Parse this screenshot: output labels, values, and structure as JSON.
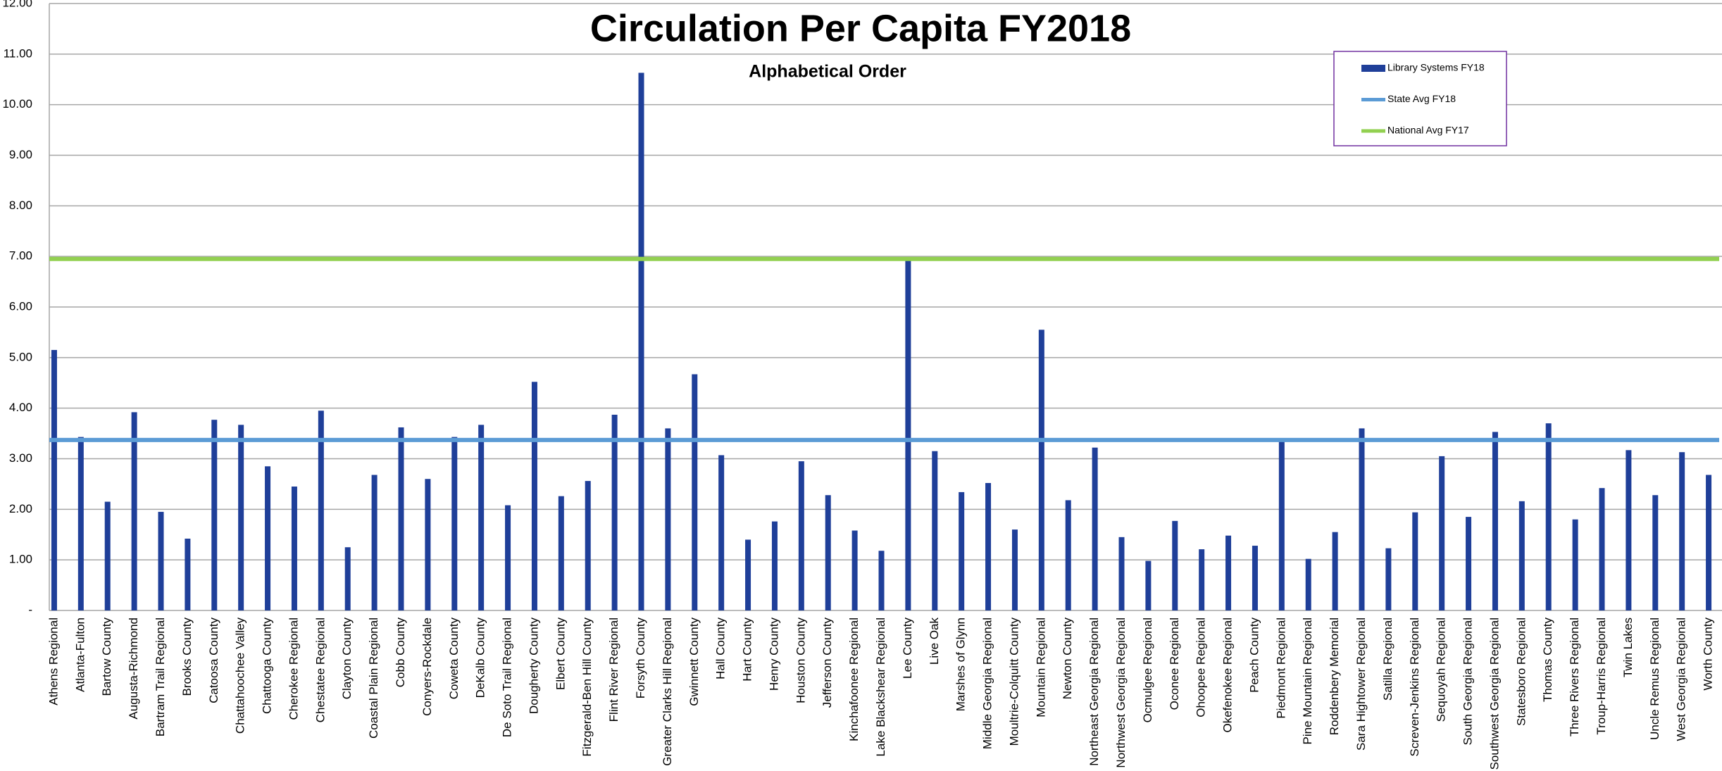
{
  "chart_data": {
    "type": "bar",
    "title": "Circulation Per Capita FY2018",
    "subtitle": "Alphabetical Order",
    "categories": [
      "Athens Regional",
      "Atlanta-Fulton",
      "Bartow County",
      "Augusta-Richmond",
      "Bartram Trail Regional",
      "Brooks County",
      "Catoosa County",
      "Chattahoochee Valley",
      "Chattooga County",
      "Cherokee Regional",
      "Chestatee Regional",
      "Clayton County",
      "Coastal Plain Regional",
      "Cobb County",
      "Conyers-Rockdale",
      "Coweta County",
      "DeKalb County",
      "De Soto Trail Regional",
      "Dougherty County",
      "Elbert County",
      "Fitzgerald-Ben Hill County",
      "Flint River Regional",
      "Forsyth County",
      "Greater Clarks Hill Regional",
      "Gwinnett County",
      "Hall County",
      "Hart County",
      "Henry County",
      "Houston County",
      "Jefferson County",
      "Kinchafoonee Regional",
      "Lake Blackshear Regional",
      "Lee County",
      "Live Oak",
      "Marshes of Glynn",
      "Middle Georgia Regional",
      "Moultrie-Colquitt County",
      "Mountain Regional",
      "Newton County",
      "Northeast Georgia Regional",
      "Northwest Georgia Regional",
      "Ocmulgee Regional",
      "Oconee Regional",
      "Ohoopee Regional",
      "Okefenokee Regional",
      "Peach County",
      "Piedmont Regional",
      "Pine Mountain Regional",
      "Roddenbery Memorial",
      "Sara Hightower Regional",
      "Satilla Regional",
      "Screven-Jenkins Regional",
      "Sequoyah Regional",
      "South Georgia Regional",
      "Southwest Georgia Regional",
      "Statesboro Regional",
      "Thomas County",
      "Three Rivers Regional",
      "Troup-Harris Regional",
      "Twin Lakes",
      "Uncle Remus Regional",
      "West Georgia Regional",
      "Worth County"
    ],
    "series": [
      {
        "name": "Library Systems FY18",
        "color": "#1f3f99",
        "values": [
          5.15,
          3.43,
          2.15,
          3.92,
          1.95,
          1.42,
          3.77,
          3.67,
          2.85,
          2.45,
          3.95,
          1.25,
          2.68,
          3.62,
          2.6,
          3.43,
          3.67,
          2.08,
          4.52,
          2.26,
          2.56,
          3.87,
          10.63,
          3.6,
          4.67,
          3.07,
          1.4,
          1.76,
          2.95,
          2.28,
          1.58,
          1.18,
          6.92,
          3.15,
          2.34,
          2.52,
          1.6,
          5.55,
          2.18,
          3.22,
          1.45,
          0.98,
          1.77,
          1.21,
          1.48,
          1.28,
          3.35,
          1.02,
          1.55,
          3.6,
          1.23,
          1.94,
          3.05,
          1.85,
          3.53,
          2.16,
          3.7,
          1.8,
          2.42,
          3.17,
          2.28,
          3.13,
          2.68
        ]
      }
    ],
    "reference_lines": [
      {
        "name": "State Avg FY18",
        "color": "#5b9bd5",
        "value": 3.37
      },
      {
        "name": "National Avg FY17",
        "color": "#92d050",
        "value": 6.95
      }
    ],
    "ylim": [
      0,
      12
    ],
    "yticks": [
      {
        "value": 0,
        "label": "-"
      },
      {
        "value": 1,
        "label": "1.00"
      },
      {
        "value": 2,
        "label": "2.00"
      },
      {
        "value": 3,
        "label": "3.00"
      },
      {
        "value": 4,
        "label": "4.00"
      },
      {
        "value": 5,
        "label": "5.00"
      },
      {
        "value": 6,
        "label": "6.00"
      },
      {
        "value": 7,
        "label": "7.00"
      },
      {
        "value": 8,
        "label": "8.00"
      },
      {
        "value": 9,
        "label": "9.00"
      },
      {
        "value": 10,
        "label": "10.00"
      },
      {
        "value": 11,
        "label": "11.00"
      },
      {
        "value": 12,
        "label": "12.00"
      }
    ],
    "grid": true,
    "legend": "top-right"
  }
}
